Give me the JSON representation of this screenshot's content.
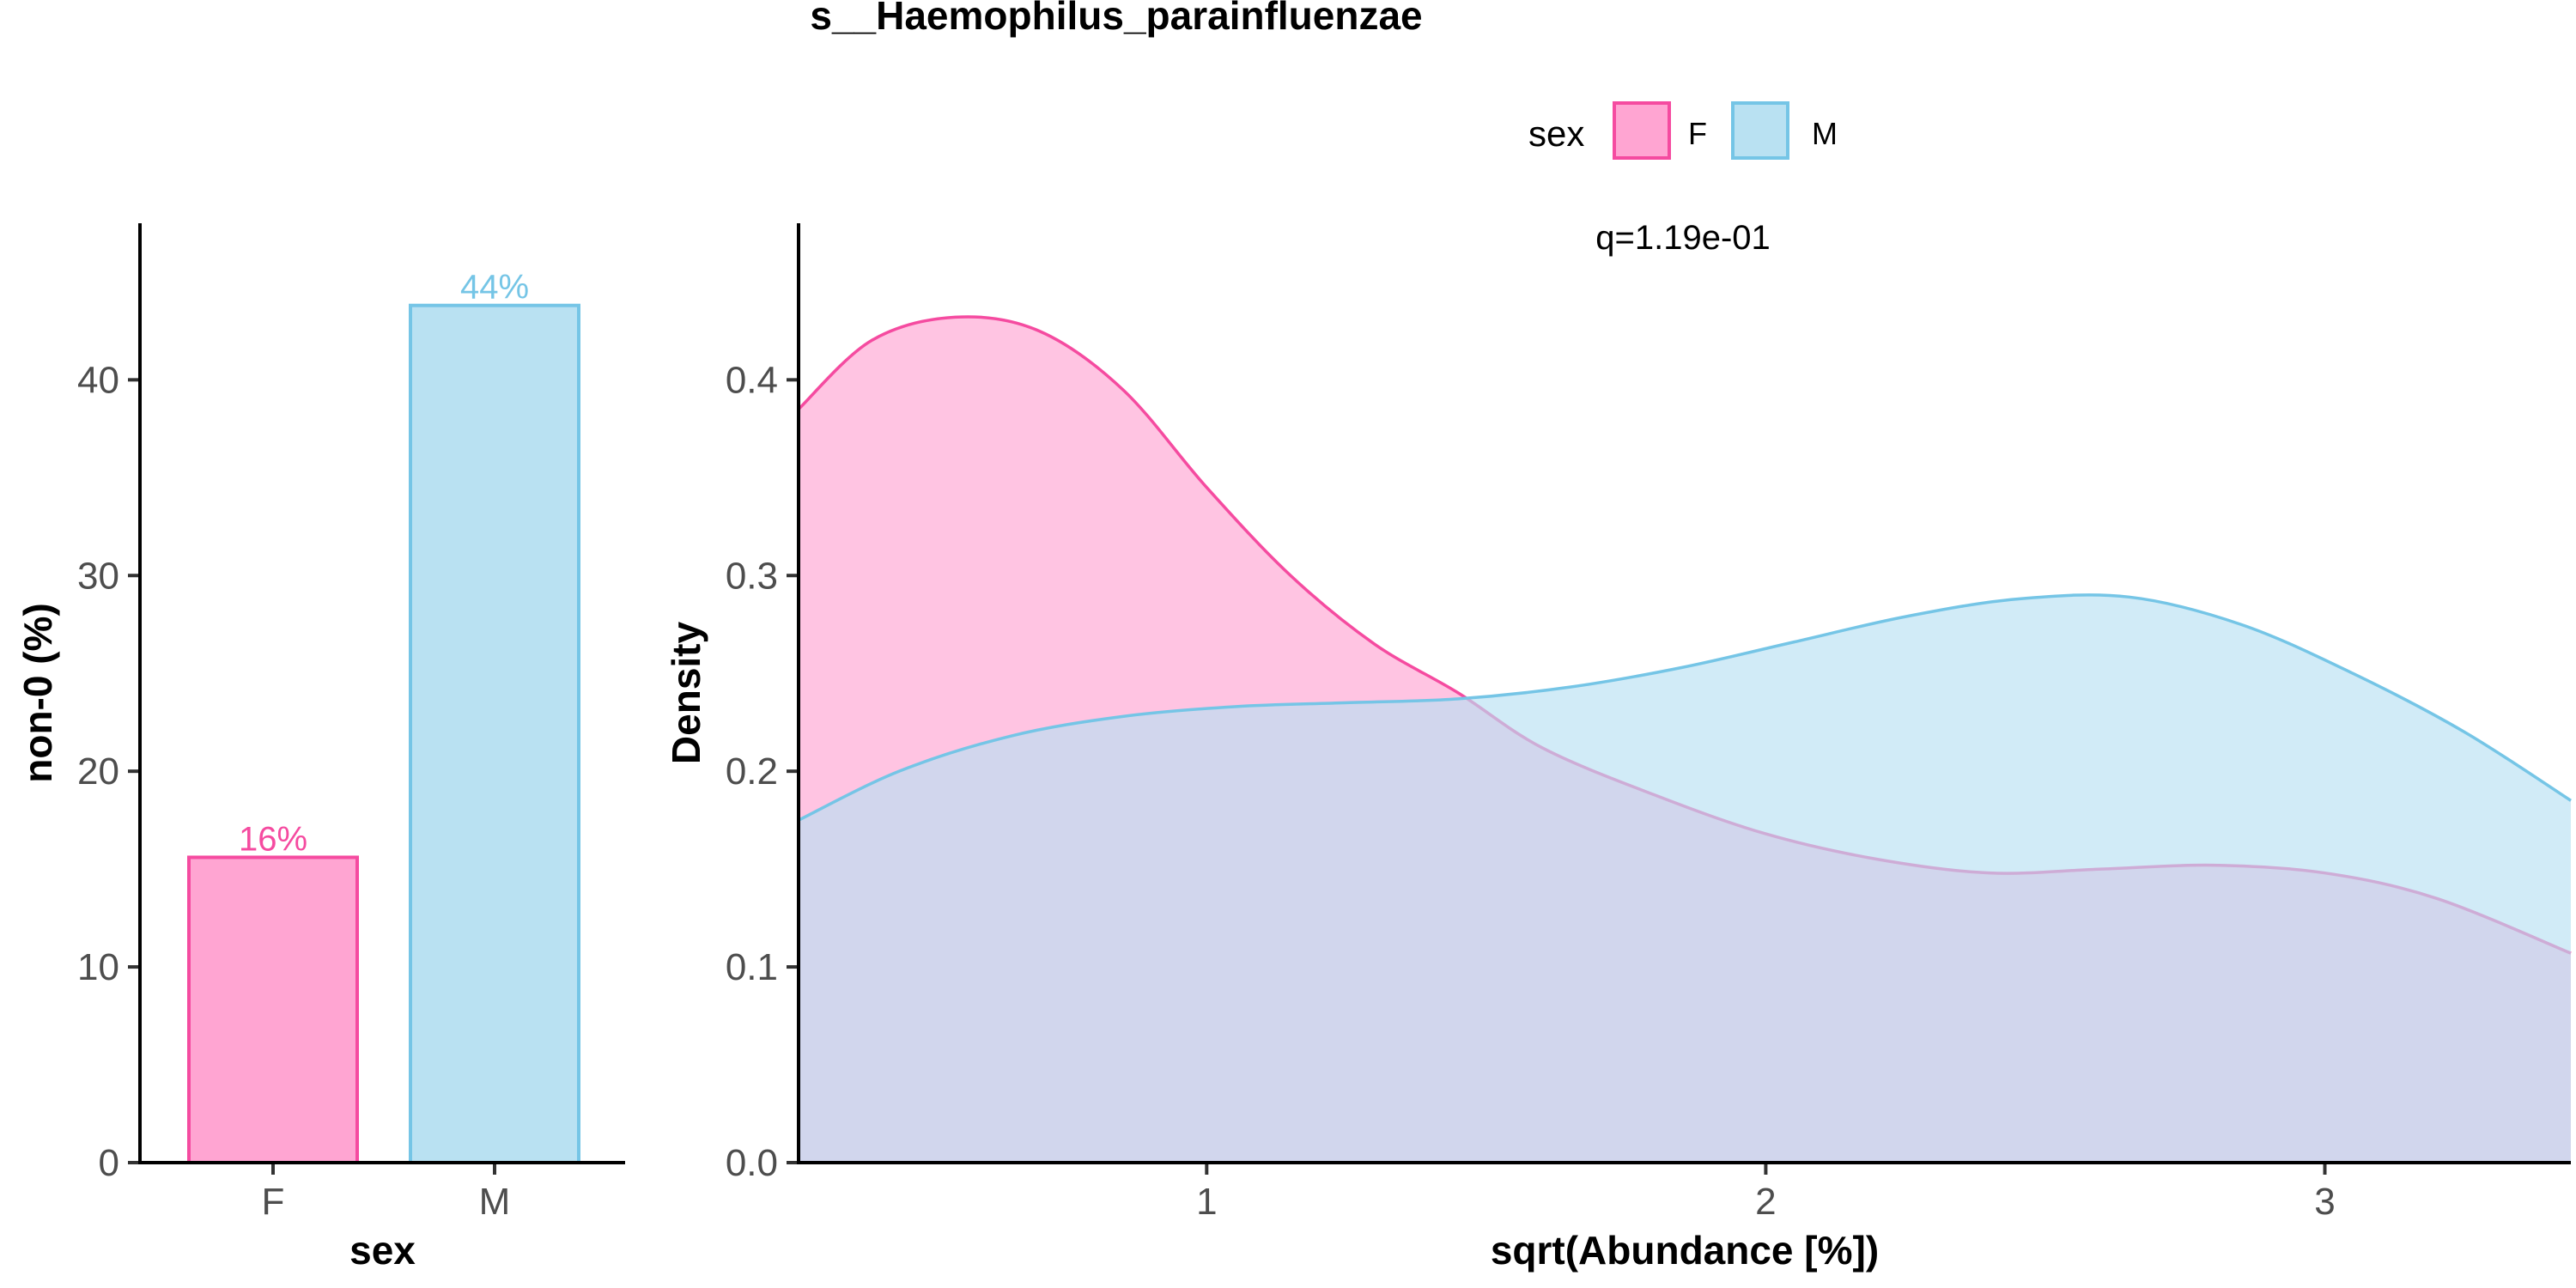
{
  "title": "s__Haemophilus_parainfluenzae",
  "colors": {
    "F_fill": "#FFA5D2",
    "F_line": "#F54BA0",
    "M_fill": "#B9E1F2",
    "M_line": "#75C5E6"
  },
  "legend": {
    "title": "sex",
    "placement": "top",
    "items": [
      {
        "key": "F",
        "label": "F"
      },
      {
        "key": "M",
        "label": "M"
      }
    ]
  },
  "chart_data": [
    {
      "type": "bar",
      "title": "",
      "xlabel": "sex",
      "ylabel": "non-0 (%)",
      "categories": [
        "F",
        "M"
      ],
      "values": [
        15.6,
        43.8
      ],
      "data_labels": [
        "16%",
        "44%"
      ],
      "ylim": [
        0,
        48
      ],
      "yticks": [
        0,
        10,
        20,
        30,
        40
      ],
      "grid": false
    },
    {
      "type": "area",
      "title": "",
      "xlabel": "sqrt(Abundance [%])",
      "ylabel": "Density",
      "annotation": "q=1.19e-01",
      "xlim": [
        0.27,
        3.44
      ],
      "ylim": [
        0,
        0.48
      ],
      "xticks": [
        1,
        2,
        3
      ],
      "yticks": [
        "0.0",
        "0.1",
        "0.2",
        "0.3",
        "0.4"
      ],
      "grid": false,
      "series": [
        {
          "name": "F",
          "x": [
            0.27,
            0.4,
            0.55,
            0.7,
            0.85,
            1.0,
            1.15,
            1.3,
            1.45,
            1.6,
            1.8,
            2.0,
            2.2,
            2.4,
            2.6,
            2.8,
            3.0,
            3.2,
            3.44
          ],
          "values": [
            0.385,
            0.42,
            0.432,
            0.425,
            0.395,
            0.345,
            0.3,
            0.265,
            0.24,
            0.212,
            0.188,
            0.168,
            0.155,
            0.148,
            0.15,
            0.152,
            0.148,
            0.135,
            0.107
          ]
        },
        {
          "name": "M",
          "x": [
            0.27,
            0.45,
            0.65,
            0.85,
            1.05,
            1.25,
            1.45,
            1.65,
            1.85,
            2.05,
            2.25,
            2.45,
            2.65,
            2.85,
            3.05,
            3.25,
            3.44
          ],
          "values": [
            0.175,
            0.2,
            0.218,
            0.228,
            0.233,
            0.235,
            0.237,
            0.243,
            0.253,
            0.266,
            0.279,
            0.288,
            0.289,
            0.275,
            0.25,
            0.22,
            0.185
          ]
        }
      ]
    }
  ]
}
